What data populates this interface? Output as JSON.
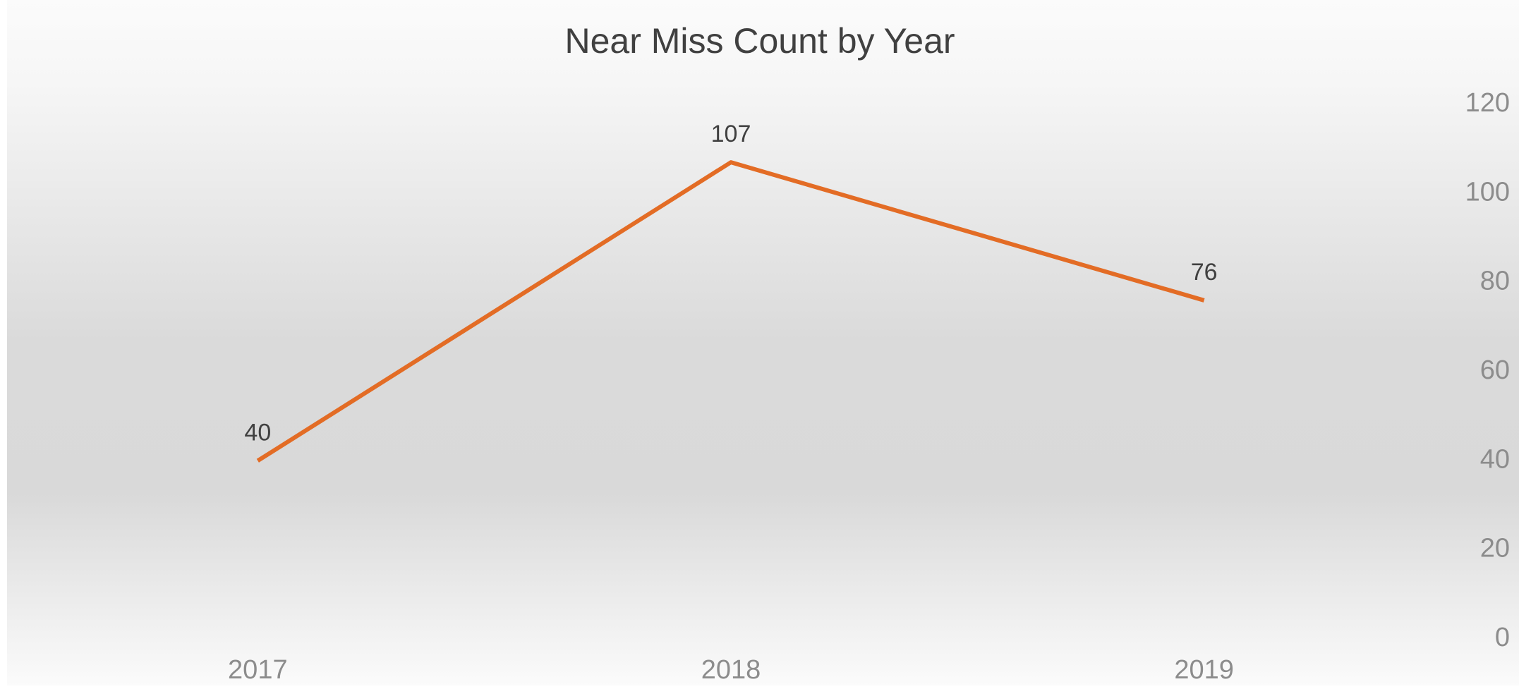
{
  "chart_data": {
    "type": "line",
    "title": "Near Miss Count by Year",
    "categories": [
      "2017",
      "2018",
      "2019"
    ],
    "values": [
      40,
      107,
      76
    ],
    "color": "#e36c25",
    "ylim": [
      0,
      120
    ],
    "yticks": [
      0,
      20,
      40,
      60,
      80,
      100,
      120
    ],
    "y_axis_side": "right",
    "grid": false,
    "data_labels": true
  }
}
